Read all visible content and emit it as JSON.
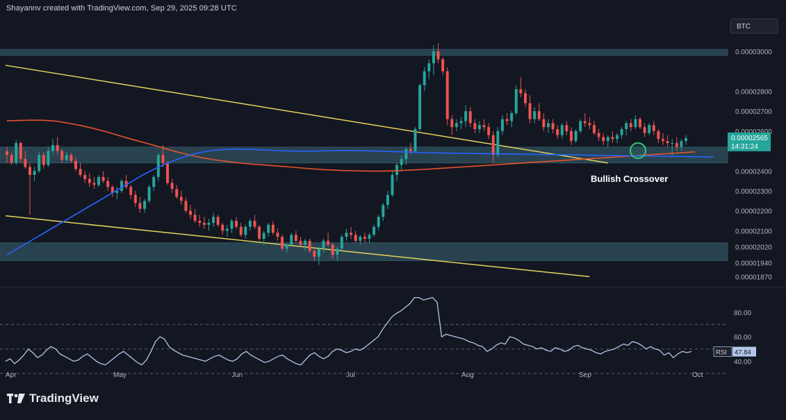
{
  "header": {
    "attribution": "Shayannv created with TradingView.com, Sep 29, 2025 09:28 UTC",
    "symbol_badge": "BTC"
  },
  "footer": {
    "brand": "TradingView"
  },
  "price_tag": {
    "price": "0.00002565",
    "countdown": "14:31:24"
  },
  "rsi_tag": {
    "label": "RSI",
    "value": "47.84"
  },
  "annotation": {
    "text": "Bullish Crossover"
  },
  "colors": {
    "background": "#131722",
    "bull": "#26a69a",
    "bear": "#ef5350",
    "zone": "#2c4a57",
    "trendline": "#e6d35c",
    "ma_fast": "#e8542e",
    "ma_slow": "#2962ff",
    "rsi": "#b2c7e8",
    "crossover_circle": "#33c77a"
  },
  "chart_data": [
    {
      "type": "candlestick",
      "title": "",
      "price_axis_ticks": [
        "0.00003000",
        "0.00002800",
        "0.00002700",
        "0.00002600",
        "0.00002400",
        "0.00002300",
        "0.00002200",
        "0.00002100",
        "0.00002020",
        "0.00001940",
        "0.00001870"
      ],
      "time_axis_ticks": [
        "Apr",
        "May",
        "Jun",
        "Jul",
        "Aug",
        "Sep",
        "Oct"
      ],
      "ylim": [
        1.83e-05,
        3.16e-05
      ],
      "zones": [
        {
          "from": 2.98e-05,
          "to": 3.01e-05
        },
        {
          "from": 2.44e-05,
          "to": 2.52e-05
        },
        {
          "from": 1.95e-05,
          "to": 2.04e-05
        }
      ],
      "ohlc": [
        [
          2499,
          2520,
          2440,
          2480
        ],
        [
          2480,
          2498,
          2430,
          2442
        ],
        [
          2442,
          2555,
          2430,
          2540
        ],
        [
          2540,
          2548,
          2440,
          2460
        ],
        [
          2460,
          2500,
          2410,
          2420
        ],
        [
          2420,
          2440,
          2180,
          2380
        ],
        [
          2380,
          2420,
          2350,
          2400
        ],
        [
          2400,
          2495,
          2390,
          2480
        ],
        [
          2480,
          2495,
          2410,
          2430
        ],
        [
          2430,
          2520,
          2420,
          2500
        ],
        [
          2500,
          2560,
          2480,
          2530
        ],
        [
          2530,
          2570,
          2480,
          2500
        ],
        [
          2500,
          2510,
          2440,
          2455
        ],
        [
          2455,
          2495,
          2440,
          2480
        ],
        [
          2480,
          2490,
          2440,
          2450
        ],
        [
          2450,
          2470,
          2400,
          2410
        ],
        [
          2410,
          2440,
          2370,
          2380
        ],
        [
          2380,
          2400,
          2340,
          2360
        ],
        [
          2360,
          2390,
          2320,
          2340
        ],
        [
          2340,
          2370,
          2310,
          2330
        ],
        [
          2330,
          2380,
          2320,
          2370
        ],
        [
          2370,
          2400,
          2340,
          2350
        ],
        [
          2350,
          2370,
          2300,
          2320
        ],
        [
          2320,
          2330,
          2270,
          2290
        ],
        [
          2290,
          2320,
          2260,
          2300
        ],
        [
          2300,
          2360,
          2290,
          2350
        ],
        [
          2350,
          2380,
          2310,
          2320
        ],
        [
          2320,
          2330,
          2260,
          2280
        ],
        [
          2280,
          2300,
          2220,
          2240
        ],
        [
          2240,
          2270,
          2190,
          2210
        ],
        [
          2210,
          2260,
          2190,
          2250
        ],
        [
          2250,
          2330,
          2240,
          2320
        ],
        [
          2320,
          2380,
          2300,
          2370
        ],
        [
          2370,
          2490,
          2350,
          2480
        ],
        [
          2480,
          2530,
          2420,
          2440
        ],
        [
          2440,
          2450,
          2330,
          2340
        ],
        [
          2340,
          2360,
          2290,
          2310
        ],
        [
          2310,
          2330,
          2260,
          2270
        ],
        [
          2270,
          2300,
          2230,
          2250
        ],
        [
          2250,
          2270,
          2190,
          2200
        ],
        [
          2200,
          2230,
          2160,
          2180
        ],
        [
          2180,
          2210,
          2140,
          2150
        ],
        [
          2150,
          2180,
          2120,
          2140
        ],
        [
          2140,
          2170,
          2110,
          2130
        ],
        [
          2130,
          2160,
          2100,
          2140
        ],
        [
          2140,
          2190,
          2120,
          2170
        ],
        [
          2170,
          2180,
          2120,
          2130
        ],
        [
          2130,
          2140,
          2080,
          2100
        ],
        [
          2100,
          2130,
          2070,
          2110
        ],
        [
          2110,
          2160,
          2090,
          2150
        ],
        [
          2150,
          2170,
          2110,
          2120
        ],
        [
          2120,
          2140,
          2070,
          2080
        ],
        [
          2080,
          2130,
          2060,
          2120
        ],
        [
          2120,
          2160,
          2100,
          2150
        ],
        [
          2150,
          2180,
          2110,
          2120
        ],
        [
          2120,
          2130,
          2050,
          2060
        ],
        [
          2060,
          2100,
          2030,
          2090
        ],
        [
          2090,
          2140,
          2070,
          2130
        ],
        [
          2130,
          2150,
          2080,
          2090
        ],
        [
          2090,
          2110,
          2050,
          2070
        ],
        [
          2070,
          2080,
          2000,
          2010
        ],
        [
          2010,
          2040,
          1990,
          2030
        ],
        [
          2030,
          2090,
          2020,
          2080
        ],
        [
          2080,
          2100,
          2040,
          2050
        ],
        [
          2050,
          2070,
          2020,
          2030
        ],
        [
          2030,
          2060,
          2000,
          2050
        ],
        [
          2050,
          2060,
          1990,
          2000
        ],
        [
          2000,
          2020,
          1950,
          1970
        ],
        [
          1970,
          2020,
          1930,
          2010
        ],
        [
          2010,
          2060,
          1990,
          2050
        ],
        [
          2050,
          2090,
          2020,
          2030
        ],
        [
          2030,
          2040,
          1960,
          1980
        ],
        [
          1980,
          2020,
          1950,
          2010
        ],
        [
          2010,
          2080,
          2000,
          2070
        ],
        [
          2070,
          2110,
          2050,
          2090
        ],
        [
          2090,
          2120,
          2060,
          2080
        ],
        [
          2080,
          2100,
          2040,
          2050
        ],
        [
          2050,
          2080,
          2030,
          2070
        ],
        [
          2070,
          2090,
          2040,
          2060
        ],
        [
          2060,
          2090,
          2040,
          2080
        ],
        [
          2080,
          2130,
          2070,
          2120
        ],
        [
          2120,
          2180,
          2100,
          2170
        ],
        [
          2170,
          2240,
          2150,
          2230
        ],
        [
          2230,
          2300,
          2210,
          2280
        ],
        [
          2280,
          2400,
          2270,
          2380
        ],
        [
          2380,
          2440,
          2350,
          2430
        ],
        [
          2430,
          2480,
          2400,
          2460
        ],
        [
          2460,
          2520,
          2430,
          2510
        ],
        [
          2510,
          2540,
          2480,
          2500
        ],
        [
          2500,
          2620,
          2490,
          2610
        ],
        [
          2610,
          2840,
          2600,
          2830
        ],
        [
          2830,
          2920,
          2800,
          2900
        ],
        [
          2900,
          2960,
          2860,
          2940
        ],
        [
          2940,
          3030,
          2880,
          3000
        ],
        [
          3000,
          3040,
          2940,
          2960
        ],
        [
          2960,
          2970,
          2880,
          2900
        ],
        [
          2900,
          2920,
          2630,
          2660
        ],
        [
          2660,
          2680,
          2580,
          2620
        ],
        [
          2620,
          2660,
          2600,
          2640
        ],
        [
          2640,
          2670,
          2610,
          2650
        ],
        [
          2650,
          2730,
          2620,
          2700
        ],
        [
          2700,
          2720,
          2620,
          2640
        ],
        [
          2640,
          2660,
          2590,
          2610
        ],
        [
          2610,
          2650,
          2590,
          2630
        ],
        [
          2630,
          2660,
          2600,
          2620
        ],
        [
          2620,
          2640,
          2560,
          2580
        ],
        [
          2580,
          2600,
          2440,
          2480
        ],
        [
          2480,
          2620,
          2470,
          2600
        ],
        [
          2600,
          2680,
          2580,
          2660
        ],
        [
          2660,
          2690,
          2630,
          2650
        ],
        [
          2650,
          2700,
          2620,
          2690
        ],
        [
          2690,
          2830,
          2680,
          2810
        ],
        [
          2810,
          2870,
          2770,
          2790
        ],
        [
          2790,
          2810,
          2720,
          2740
        ],
        [
          2740,
          2780,
          2640,
          2660
        ],
        [
          2660,
          2720,
          2640,
          2700
        ],
        [
          2700,
          2740,
          2650,
          2660
        ],
        [
          2660,
          2690,
          2600,
          2620
        ],
        [
          2620,
          2660,
          2590,
          2640
        ],
        [
          2640,
          2660,
          2590,
          2610
        ],
        [
          2610,
          2630,
          2560,
          2580
        ],
        [
          2580,
          2640,
          2560,
          2630
        ],
        [
          2630,
          2650,
          2580,
          2600
        ],
        [
          2600,
          2620,
          2530,
          2550
        ],
        [
          2550,
          2610,
          2540,
          2600
        ],
        [
          2600,
          2660,
          2590,
          2650
        ],
        [
          2650,
          2690,
          2620,
          2640
        ],
        [
          2640,
          2670,
          2610,
          2630
        ],
        [
          2630,
          2650,
          2580,
          2590
        ],
        [
          2590,
          2610,
          2550,
          2570
        ],
        [
          2570,
          2590,
          2530,
          2550
        ],
        [
          2550,
          2580,
          2520,
          2570
        ],
        [
          2570,
          2600,
          2540,
          2560
        ],
        [
          2560,
          2590,
          2540,
          2580
        ],
        [
          2580,
          2620,
          2560,
          2610
        ],
        [
          2610,
          2650,
          2580,
          2640
        ],
        [
          2640,
          2660,
          2600,
          2620
        ],
        [
          2620,
          2680,
          2610,
          2660
        ],
        [
          2660,
          2670,
          2610,
          2620
        ],
        [
          2620,
          2640,
          2570,
          2590
        ],
        [
          2590,
          2640,
          2580,
          2630
        ],
        [
          2630,
          2650,
          2580,
          2600
        ],
        [
          2600,
          2610,
          2540,
          2560
        ],
        [
          2560,
          2590,
          2530,
          2550
        ],
        [
          2550,
          2580,
          2520,
          2540
        ],
        [
          2540,
          2560,
          2470,
          2540
        ],
        [
          2540,
          2570,
          2500,
          2520
        ],
        [
          2520,
          2560,
          2500,
          2550
        ],
        [
          2550,
          2580,
          2530,
          2565
        ]
      ],
      "ma_fast": [
        2652,
        2653,
        2655,
        2654,
        2650,
        2640,
        2628,
        2614,
        2598,
        2580,
        2562,
        2545,
        2528,
        2510,
        2493,
        2478,
        2465,
        2455,
        2447,
        2440,
        2434,
        2430,
        2425,
        2420,
        2415,
        2410,
        2406,
        2403,
        2401,
        2400,
        2399,
        2400,
        2402,
        2405,
        2408,
        2412,
        2416,
        2420,
        2424,
        2428,
        2432,
        2436,
        2440,
        2444,
        2448,
        2452,
        2456,
        2460,
        2464,
        2468,
        2472,
        2476,
        2480,
        2484,
        2488,
        2492,
        2496
      ],
      "ma_slow": [
        1980,
        2020,
        2060,
        2100,
        2140,
        2180,
        2220,
        2260,
        2300,
        2340,
        2380,
        2415,
        2445,
        2470,
        2490,
        2502,
        2508,
        2510,
        2508,
        2505,
        2502,
        2500,
        2498,
        2500,
        2502,
        2503,
        2502,
        2500,
        2498,
        2496,
        2494,
        2492,
        2490,
        2489,
        2488,
        2487,
        2486,
        2485,
        2484,
        2483,
        2482,
        2481,
        2480,
        2479,
        2478,
        2477,
        2476,
        2475,
        2474,
        2473,
        2472,
        2471,
        2470
      ],
      "trendlines": [
        {
          "from": [
            0,
            2930
          ],
          "to": [
            131,
            2440
          ]
        },
        {
          "from": [
            0,
            2175
          ],
          "to": [
            127,
            1870
          ]
        }
      ]
    },
    {
      "type": "line",
      "title": "RSI",
      "y_axis_ticks": [
        "80.00",
        "60.00",
        "40.00"
      ],
      "ylim": [
        30,
        98
      ],
      "levels": [
        70,
        50,
        30
      ],
      "values": [
        40,
        42,
        38,
        41,
        45,
        50,
        47,
        43,
        45,
        49,
        52,
        50,
        46,
        44,
        42,
        40,
        41,
        44,
        46,
        43,
        40,
        38,
        37,
        40,
        43,
        46,
        48,
        45,
        42,
        39,
        37,
        41,
        48,
        56,
        60,
        58,
        52,
        49,
        47,
        45,
        44,
        43,
        42,
        41,
        40,
        42,
        44,
        45,
        43,
        41,
        40,
        42,
        46,
        48,
        45,
        43,
        41,
        39,
        40,
        42,
        44,
        45,
        42,
        40,
        38,
        37,
        41,
        45,
        47,
        44,
        42,
        44,
        48,
        50,
        49,
        47,
        48,
        50,
        49,
        51,
        54,
        57,
        60,
        66,
        71,
        76,
        79,
        81,
        84,
        87,
        92,
        92,
        90,
        91,
        92,
        88,
        60,
        62,
        61,
        60,
        59,
        58,
        56,
        55,
        53,
        52,
        48,
        50,
        53,
        55,
        54,
        60,
        59,
        57,
        54,
        53,
        52,
        50,
        51,
        49,
        48,
        51,
        50,
        48,
        49,
        52,
        53,
        51,
        50,
        49,
        47,
        46,
        48,
        49,
        50,
        52,
        54,
        53,
        56,
        55,
        53,
        50,
        52,
        50,
        49,
        45,
        47,
        43,
        46,
        48,
        47,
        48
      ]
    }
  ]
}
